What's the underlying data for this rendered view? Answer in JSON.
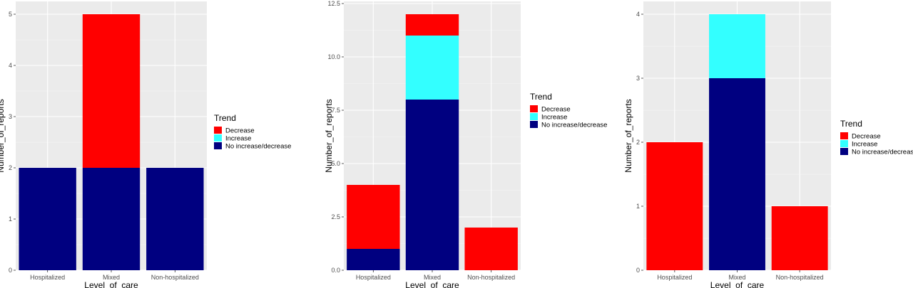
{
  "legend": {
    "title": "Trend",
    "entries": [
      {
        "key": "Decrease",
        "label": "Decrease",
        "color": "#FF0000"
      },
      {
        "key": "Increase",
        "label": "Increase",
        "color": "#33FFFF"
      },
      {
        "key": "No increase/decrease",
        "label": "No increase/decrease",
        "color": "#000080"
      }
    ]
  },
  "chart_data": [
    {
      "type": "bar",
      "stacked": true,
      "xlabel": "Level_of_care",
      "ylabel": "Number_of_reports",
      "categories": [
        "Hospitalized",
        "Mixed",
        "Non-hospitalized"
      ],
      "series": [
        {
          "name": "No increase/decrease",
          "values": [
            2,
            2,
            2
          ]
        },
        {
          "name": "Increase",
          "values": [
            0,
            0,
            0
          ]
        },
        {
          "name": "Decrease",
          "values": [
            0,
            3,
            0
          ]
        }
      ],
      "ylim": [
        0,
        5.25
      ],
      "yticks": [
        0,
        1,
        2,
        3,
        4,
        5
      ],
      "ytick_labels": [
        "0",
        "1",
        "2",
        "3",
        "4",
        "5"
      ],
      "grid": true,
      "legend_position": "right"
    },
    {
      "type": "bar",
      "stacked": true,
      "xlabel": "Level_of_care",
      "ylabel": "Number_of_reports",
      "categories": [
        "Hospitalized",
        "Mixed",
        "Non-hospitalized"
      ],
      "series": [
        {
          "name": "No increase/decrease",
          "values": [
            1,
            8,
            0
          ]
        },
        {
          "name": "Increase",
          "values": [
            0,
            3,
            0
          ]
        },
        {
          "name": "Decrease",
          "values": [
            3,
            1,
            2
          ]
        }
      ],
      "ylim": [
        0,
        12.6
      ],
      "yticks": [
        0,
        2.5,
        5,
        7.5,
        10,
        12.5
      ],
      "ytick_labels": [
        "0.0",
        "2.5",
        "5.0",
        "7.5",
        "10.0",
        "12.5"
      ],
      "grid": true,
      "legend_position": "right"
    },
    {
      "type": "bar",
      "stacked": true,
      "xlabel": "Level_of_care",
      "ylabel": "Number_of_reports",
      "categories": [
        "Hospitalized",
        "Mixed",
        "Non-hospitalized"
      ],
      "series": [
        {
          "name": "No increase/decrease",
          "values": [
            0,
            3,
            0
          ]
        },
        {
          "name": "Increase",
          "values": [
            0,
            1,
            0
          ]
        },
        {
          "name": "Decrease",
          "values": [
            2,
            0,
            1
          ]
        }
      ],
      "ylim": [
        0,
        4.2
      ],
      "yticks": [
        0,
        1,
        2,
        3,
        4
      ],
      "ytick_labels": [
        "0",
        "1",
        "2",
        "3",
        "4"
      ],
      "grid": true,
      "legend_position": "right"
    }
  ]
}
